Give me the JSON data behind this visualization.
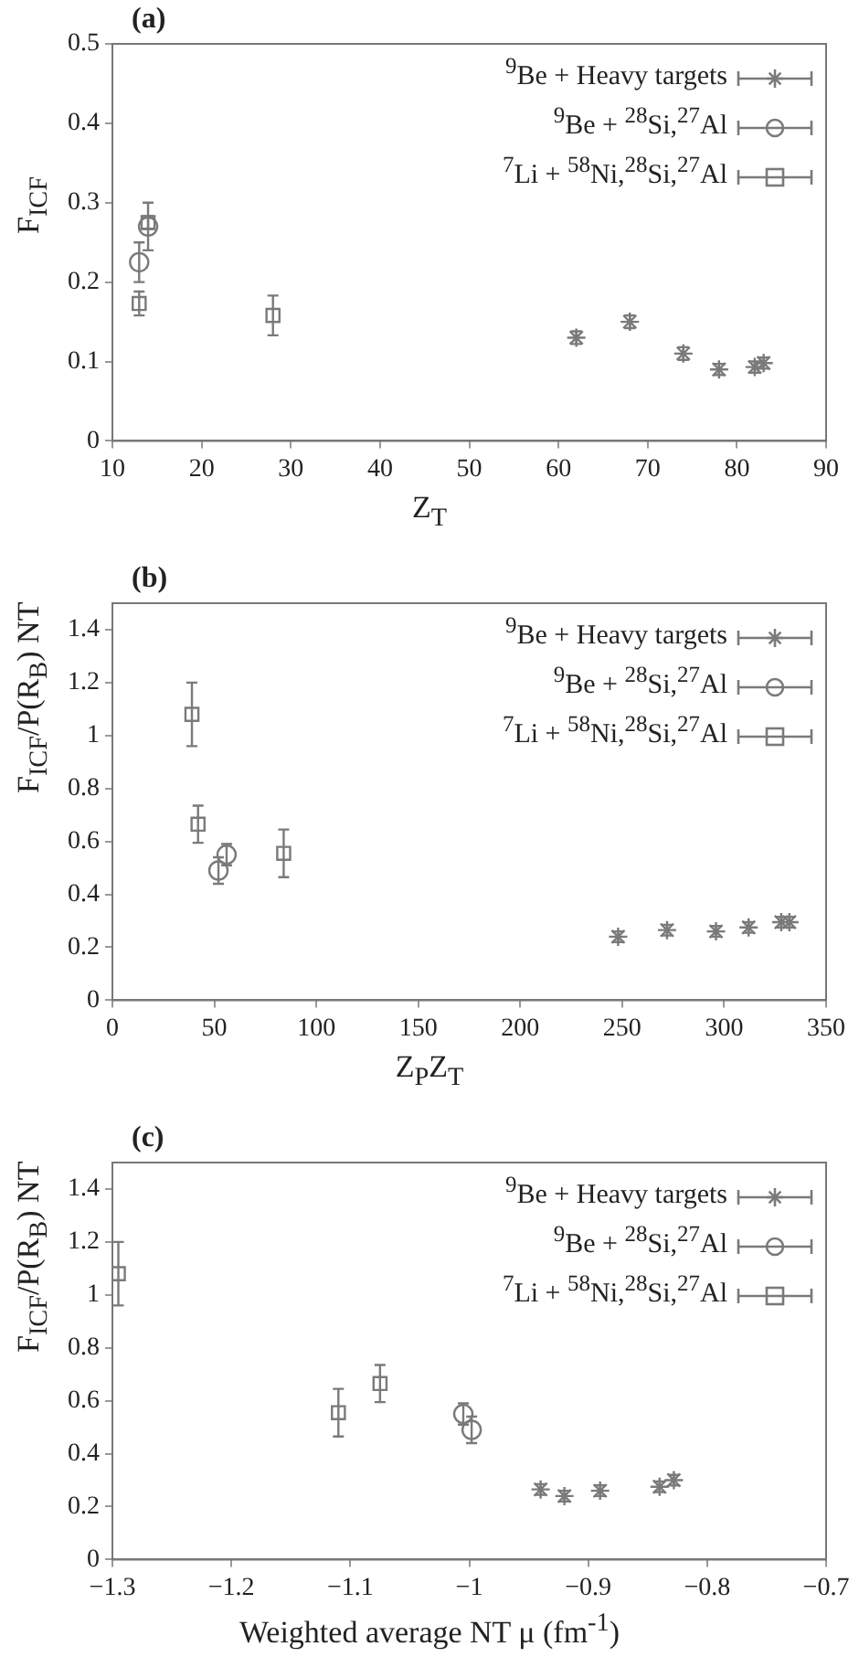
{
  "chart_data": [
    {
      "type": "scatter",
      "title": "(a)",
      "xlabel": "Z$_{T}$",
      "ylabel": "F$_{ICF}$",
      "xlim": [
        10,
        90
      ],
      "xticks": [
        10,
        20,
        30,
        40,
        50,
        60,
        70,
        80,
        90
      ],
      "ylim": [
        0,
        0.5
      ],
      "yticks": [
        0,
        0.1,
        0.2,
        0.3,
        0.4,
        0.5
      ],
      "grid": false,
      "legend": "top right",
      "series": [
        {
          "name": "$^{9}$Be + Heavy targets",
          "color": "#7a7a7a",
          "marker": "cross",
          "x": [
            62,
            68,
            74,
            78,
            82,
            83
          ],
          "values": [
            0.13,
            0.15,
            0.11,
            0.09,
            0.093,
            0.098
          ],
          "errors": [
            0.008,
            0.008,
            0.008,
            0.007,
            0.007,
            0.007
          ]
        },
        {
          "name": "$^{9}$Be + $^{28}$Si,$^{27}$Al",
          "color": "#7a7a7a",
          "marker": "circle",
          "x": [
            13,
            14
          ],
          "values": [
            0.225,
            0.27
          ],
          "errors": [
            0.025,
            0.03
          ]
        },
        {
          "name": "$^{7}$Li + $^{58}$Ni,$^{28}$Si,$^{27}$Al",
          "color": "#7a7a7a",
          "marker": "square",
          "x": [
            13,
            14,
            28
          ],
          "values": [
            0.173,
            0.275,
            0.158
          ],
          "errors": [
            0.015,
            0.008,
            0.025
          ]
        }
      ]
    },
    {
      "type": "scatter",
      "title": "(b)",
      "xlabel": "Z$_{P}$Z$_{T}$",
      "ylabel": "F$_{ICF}$/P(R$_{B}$) NT",
      "xlim": [
        0,
        350
      ],
      "xticks": [
        0,
        50,
        100,
        150,
        200,
        250,
        300,
        350
      ],
      "ylim": [
        0,
        1.5
      ],
      "yticks": [
        0,
        0.2,
        0.4,
        0.6,
        0.8,
        1,
        1.2,
        1.4
      ],
      "grid": false,
      "legend": "top right",
      "series": [
        {
          "name": "$^{9}$Be + Heavy targets",
          "color": "#7a7a7a",
          "marker": "cross",
          "x": [
            248,
            272,
            296,
            312,
            328,
            332
          ],
          "values": [
            0.24,
            0.265,
            0.26,
            0.275,
            0.295,
            0.295
          ],
          "errors": [
            0.02,
            0.02,
            0.02,
            0.02,
            0.02,
            0.02
          ]
        },
        {
          "name": "$^{9}$Be + $^{28}$Si,$^{27}$Al",
          "color": "#7a7a7a",
          "marker": "circle",
          "x": [
            52,
            56
          ],
          "values": [
            0.49,
            0.55
          ],
          "errors": [
            0.05,
            0.04
          ]
        },
        {
          "name": "$^{7}$Li + $^{58}$Ni,$^{28}$Si,$^{27}$Al",
          "color": "#7a7a7a",
          "marker": "square",
          "x": [
            39,
            42,
            84
          ],
          "values": [
            1.08,
            0.665,
            0.555
          ],
          "errors": [
            0.12,
            0.07,
            0.09
          ]
        }
      ]
    },
    {
      "type": "scatter",
      "title": "(c)",
      "xlabel": "Weighted average NT μ (fm$^{-1}$)",
      "ylabel": "F$_{ICF}$/P(R$_{B}$) NT",
      "xlim": [
        -1.3,
        -0.7
      ],
      "xticks": [
        {
          "value": -1.3,
          "label": "−1.3"
        },
        {
          "value": -1.2,
          "label": "−1.2"
        },
        {
          "value": -1.1,
          "label": "−1.1"
        },
        {
          "value": -1,
          "label": "−1"
        },
        {
          "value": -0.9,
          "label": "−0.9"
        },
        {
          "value": -0.8,
          "label": "−0.8"
        },
        {
          "value": -0.7,
          "label": "−0.7"
        }
      ],
      "ylim": [
        0,
        1.5
      ],
      "yticks": [
        0,
        0.2,
        0.4,
        0.6,
        0.8,
        1,
        1.2,
        1.4
      ],
      "grid": false,
      "legend": "top right",
      "series": [
        {
          "name": "$^{9}$Be + Heavy targets",
          "color": "#7a7a7a",
          "marker": "cross",
          "x": [
            -0.94,
            -0.92,
            -0.89,
            -0.84,
            -0.833,
            -0.828
          ],
          "values": [
            0.265,
            0.24,
            0.26,
            0.275,
            null,
            0.3
          ],
          "errors": [
            0.02,
            0.02,
            0.02,
            0.02,
            null,
            0.02
          ]
        },
        {
          "name": "$^{9}$Be + $^{28}$Si,$^{27}$Al",
          "color": "#7a7a7a",
          "marker": "circle",
          "x": [
            -1.005,
            -0.998
          ],
          "values": [
            0.55,
            0.49
          ],
          "errors": [
            0.04,
            0.05
          ]
        },
        {
          "name": "$^{7}$Li + $^{58}$Ni,$^{28}$Si,$^{27}$Al",
          "color": "#7a7a7a",
          "marker": "square",
          "x": [
            -1.295,
            -1.11,
            -1.075
          ],
          "values": [
            1.08,
            0.555,
            0.665
          ],
          "errors": [
            0.12,
            0.09,
            0.07
          ]
        }
      ]
    }
  ]
}
